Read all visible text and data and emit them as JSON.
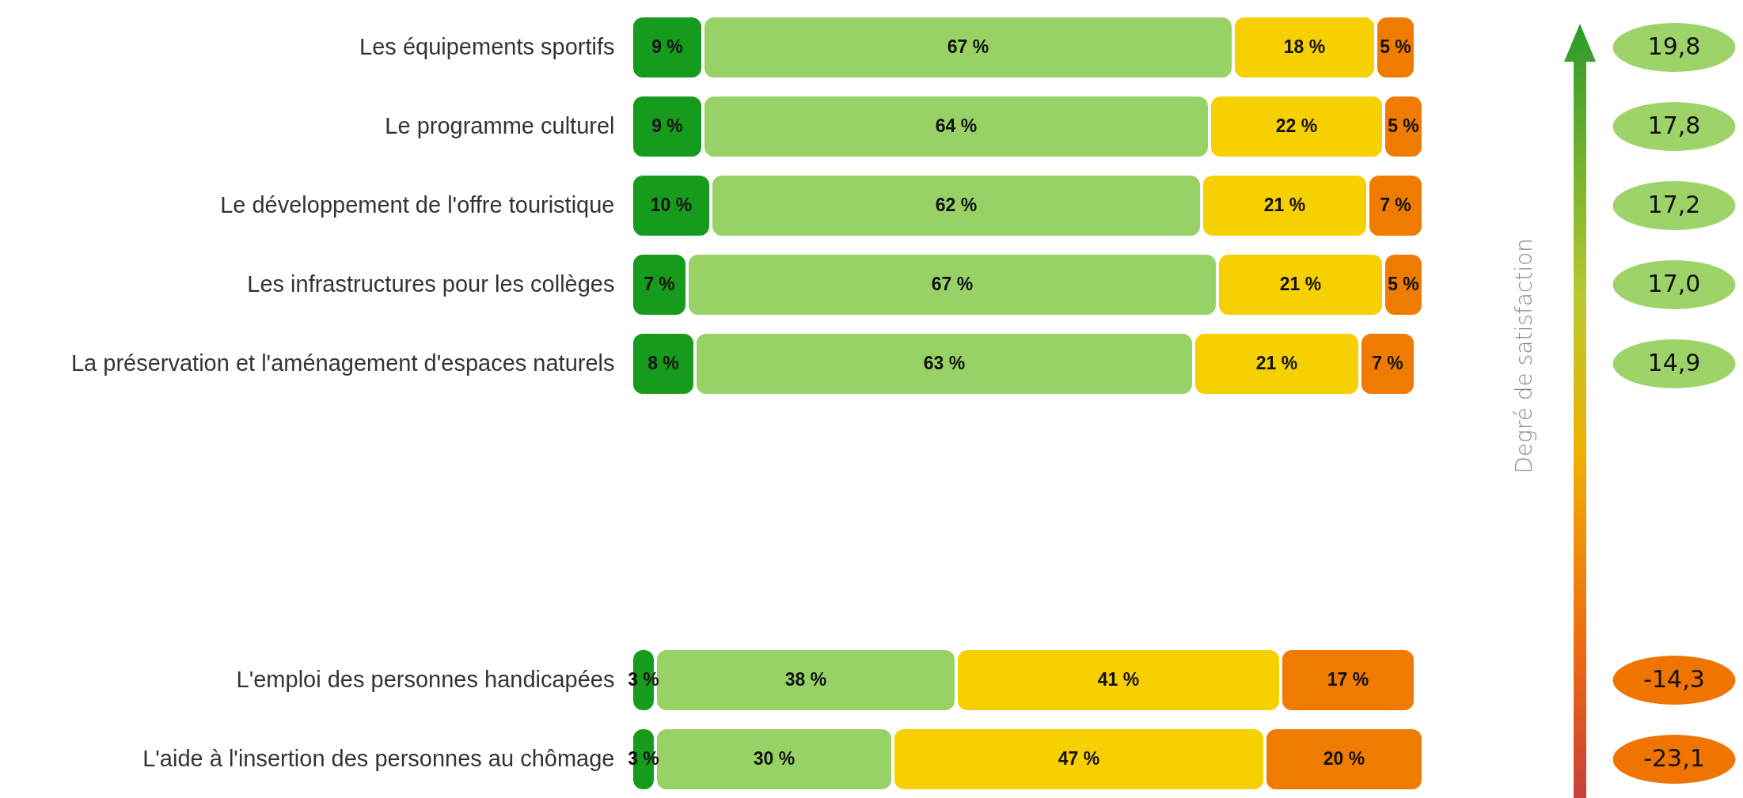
{
  "chart_data": [
    {
      "type": "bar",
      "orientation": "horizontal",
      "stacked": true,
      "tick_labels": "y",
      "categories": [
        "Les équipements sportifs",
        "Le programme culturel",
        "Le développement de l'offre touristique",
        "Les infrastructures pour les collèges",
        "La préservation et l'aménagement d'espaces naturels"
      ],
      "series": [
        {
          "color": "#179b1d",
          "values": [
            9,
            9,
            10,
            7,
            8
          ],
          "value_labels": [
            "9 %",
            "9 %",
            "10 %",
            "7 %",
            "8 %"
          ]
        },
        {
          "color": "#98d266",
          "values": [
            67,
            64,
            62,
            67,
            63
          ],
          "value_labels": [
            "67 %",
            "64 %",
            "62 %",
            "67 %",
            "63 %"
          ]
        },
        {
          "color": "#f6d000",
          "values": [
            18,
            22,
            21,
            21,
            21
          ],
          "value_labels": [
            "18 %",
            "22 %",
            "21 %",
            "21 %",
            "21 %"
          ]
        },
        {
          "color": "#ef7b00",
          "values": [
            5,
            5,
            7,
            5,
            7
          ],
          "value_labels": [
            "5 %",
            "5 %",
            "7 %",
            "5 %",
            "7 %"
          ]
        }
      ],
      "annotations": [
        "Degré de satisfaction",
        "19,8",
        "17,8",
        "17,2",
        "17,0",
        "14,9"
      ]
    },
    {
      "type": "bar",
      "orientation": "horizontal",
      "stacked": true,
      "tick_labels": "y",
      "categories": [
        "L'emploi des personnes handicapées",
        "L'aide à l'insertion des personnes au chômage"
      ],
      "series": [
        {
          "color": "#179b1d",
          "values": [
            3,
            3
          ],
          "value_labels": [
            "3 %",
            "3 %"
          ]
        },
        {
          "color": "#98d266",
          "values": [
            38,
            30
          ],
          "value_labels": [
            "38 %",
            "30 %"
          ]
        },
        {
          "color": "#f6d000",
          "values": [
            41,
            47
          ],
          "value_labels": [
            "41 %",
            "47 %"
          ]
        },
        {
          "color": "#ef7b00",
          "values": [
            17,
            20
          ],
          "value_labels": [
            "17 %",
            "20 %"
          ]
        }
      ],
      "annotations": [
        "-14,3",
        "-23,1"
      ]
    }
  ]
}
